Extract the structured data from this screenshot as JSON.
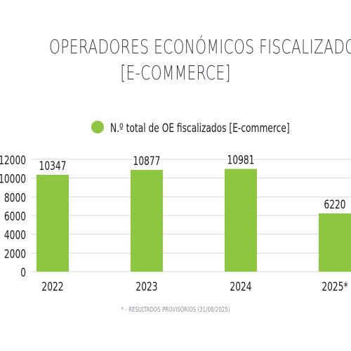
{
  "chart_data": {
    "type": "bar",
    "title_lines": [
      "OPERADORES ECONÓMICOS FISCALIZADOS",
      "[E-COMMERCE]"
    ],
    "categories": [
      "2022",
      "2023",
      "2024",
      "2025*"
    ],
    "series": [
      {
        "name": "N.º total de OE fiscalizados [E-commerce]",
        "values": [
          10347,
          10877,
          10981,
          6220
        ],
        "color": "#8dc63f"
      }
    ],
    "y_ticks": [
      "12000",
      "10000",
      "8000",
      "6000",
      "4000",
      "2000",
      "0"
    ],
    "ylim": [
      0,
      12000
    ],
    "grid": true,
    "legend_position": "top",
    "data_labels": [
      "10347",
      "10877",
      "10981",
      "6220"
    ],
    "footnote": "* - RESULTADOS PROVISÓRIOS (31/08/2025)"
  },
  "colors": {
    "title": "#3a3f4a",
    "bar": "#8dc63f",
    "grid": "#d9d9d9",
    "axis_text": "#1a1a1a",
    "footnote": "#8a93a0"
  }
}
